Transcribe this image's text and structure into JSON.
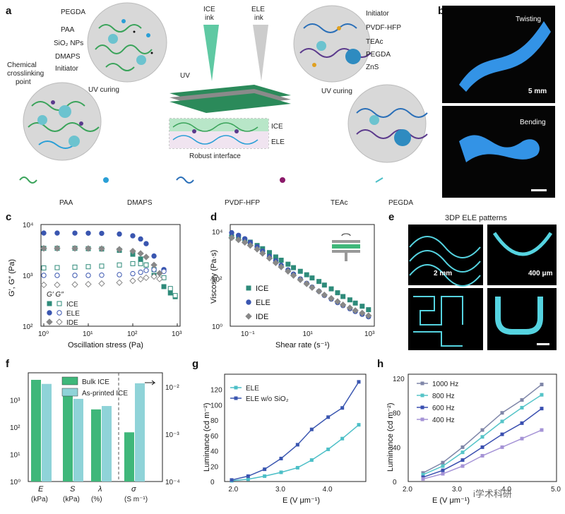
{
  "panels": {
    "a": "a",
    "b": "b",
    "c": "c",
    "d": "d",
    "e": "e",
    "f": "f",
    "g": "g",
    "h": "h"
  },
  "panel_a": {
    "ice_ink": [
      "ICE",
      "ink"
    ],
    "ele_ink": [
      "ELE",
      "ink"
    ],
    "left_components": [
      "PEGDA",
      "PAA",
      "SiO₂ NPs",
      "DMAPS",
      "Initiator"
    ],
    "right_components": [
      "Initiator",
      "PVDF-HFP",
      "TEAc",
      "PEGDA",
      "ZnS"
    ],
    "crosslink": [
      "Chemical",
      "crosslinking",
      "point"
    ],
    "uv": "UV",
    "uv_curing_left": "UV curing",
    "uv_curing_right": "UV curing",
    "layer_ice": "ICE",
    "layer_ele": "ELE",
    "robust": "Robust interface",
    "legend": [
      "PAA",
      "DMAPS",
      "PVDF-HFP",
      "TEAc",
      "PEGDA"
    ]
  },
  "panel_b": {
    "twisting": "Twisting",
    "bending": "Bending",
    "scale": "5 mm"
  },
  "panel_e": {
    "title": "3DP ELE patterns",
    "scale1": "2 mm",
    "scale2": "400 μm"
  },
  "watermark": "i学术科研",
  "chart_data": [
    {
      "id": "c",
      "type": "scatter",
      "xscale": "log",
      "yscale": "log",
      "xlabel": "Oscillation stress (Pa)",
      "ylabel": "G′, G″ (Pa)",
      "xlim": [
        1,
        1000
      ],
      "ylim": [
        100,
        10000
      ],
      "xticks": [
        "10⁰",
        "10¹",
        "10²",
        "10³"
      ],
      "yticks": [
        "10²",
        "10³",
        "10⁴"
      ],
      "legend_header": "G′ G″",
      "series": [
        {
          "name": "ICE",
          "x": [
            1,
            2,
            5,
            10,
            20,
            50,
            100,
            150,
            200,
            300,
            500,
            700,
            900
          ],
          "g1": [
            3400,
            3400,
            3400,
            3350,
            3300,
            3100,
            2600,
            2100,
            1600,
            1000,
            600,
            450,
            380
          ],
          "g2": [
            1400,
            1420,
            1450,
            1480,
            1520,
            1600,
            1700,
            1700,
            1600,
            1300,
            900,
            550,
            400
          ]
        },
        {
          "name": "ELE",
          "x": [
            1,
            2,
            5,
            10,
            20,
            50,
            100,
            150,
            200,
            300,
            500
          ],
          "g1": [
            6800,
            6800,
            6780,
            6750,
            6700,
            6500,
            6000,
            5200,
            4200,
            2400,
            1300
          ],
          "g2": [
            1000,
            1000,
            1000,
            1000,
            1010,
            1030,
            1080,
            1150,
            1250,
            1300,
            1200
          ]
        },
        {
          "name": "IDE",
          "x": [
            1,
            2,
            5,
            10,
            20,
            50,
            100,
            150,
            200,
            300,
            400
          ],
          "g1": [
            3400,
            3400,
            3400,
            3380,
            3350,
            3250,
            3000,
            2700,
            2300,
            1600,
            1100
          ],
          "g2": [
            650,
            650,
            660,
            670,
            690,
            720,
            780,
            840,
            900,
            950,
            850
          ]
        }
      ]
    },
    {
      "id": "d",
      "type": "scatter",
      "xscale": "log",
      "yscale": "log",
      "xlabel": "Shear rate (s⁻¹)",
      "ylabel": "Viscosity (Pa·s)",
      "xlim": [
        0.03,
        1000
      ],
      "ylim": [
        1,
        20000
      ],
      "xticks": [
        "10⁻¹",
        "10¹",
        "10³"
      ],
      "yticks": [
        "10⁰",
        "10²",
        "10⁴"
      ],
      "series": [
        {
          "name": "ICE",
          "color": "#2e8b7a",
          "marker": "square",
          "x": [
            0.03,
            0.05,
            0.08,
            0.12,
            0.2,
            0.3,
            0.5,
            0.8,
            1.2,
            2,
            3,
            5,
            8,
            12,
            20,
            30,
            50,
            80,
            120,
            200,
            300,
            500,
            800
          ],
          "y": [
            6000,
            5200,
            4400,
            3600,
            2600,
            1900,
            1300,
            850,
            620,
            420,
            300,
            210,
            150,
            110,
            78,
            55,
            38,
            26,
            18,
            13,
            9.5,
            7,
            5
          ]
        },
        {
          "name": "ELE",
          "color": "#3a56b0",
          "marker": "circle",
          "x": [
            0.03,
            0.05,
            0.08,
            0.12,
            0.2,
            0.3,
            0.5,
            0.8,
            1.2,
            2,
            3,
            5,
            8,
            12,
            20,
            30,
            50,
            80,
            120,
            200,
            300,
            500,
            800
          ],
          "y": [
            9000,
            7000,
            5000,
            3500,
            2300,
            1500,
            900,
            580,
            380,
            240,
            160,
            100,
            65,
            45,
            30,
            20,
            14,
            10,
            7.5,
            5.5,
            4.2,
            3.2,
            2.5
          ]
        },
        {
          "name": "IDE",
          "color": "#888",
          "marker": "diamond",
          "x": [
            0.03,
            0.05,
            0.08,
            0.12,
            0.2,
            0.3,
            0.5,
            0.8,
            1.2,
            2,
            3,
            5,
            8,
            12,
            20,
            30,
            50,
            80,
            120,
            200,
            300,
            500,
            800
          ],
          "y": [
            5500,
            4500,
            3500,
            2600,
            1800,
            1200,
            750,
            480,
            320,
            210,
            140,
            92,
            62,
            43,
            30,
            21,
            15,
            11,
            8,
            6,
            4.6,
            3.6,
            2.8
          ]
        }
      ]
    },
    {
      "id": "f",
      "type": "bar",
      "yscale": "log",
      "categories": [
        "E",
        "S",
        "λ",
        "σ"
      ],
      "units": [
        "(kPa)",
        "(kPa)",
        "(%)",
        "(S m⁻¹)"
      ],
      "series": [
        {
          "name": "Bulk ICE",
          "color": "#3fb77a",
          "values": [
            5500,
            1700,
            450,
            0.0011
          ]
        },
        {
          "name": "As-printed ICE",
          "color": "#8fd3d8",
          "values": [
            3900,
            1100,
            600,
            0.012
          ]
        }
      ],
      "ylim_left": [
        1,
        10000
      ],
      "ylim_right": [
        0.0001,
        0.02
      ],
      "yticks_left": [
        "10⁰",
        "10¹",
        "10²",
        "10³"
      ],
      "yticks_right": [
        "10⁻⁴",
        "10⁻³",
        "10⁻²"
      ]
    },
    {
      "id": "g",
      "type": "line",
      "xlabel": "E (V μm⁻¹)",
      "ylabel": "Luminance (cd m⁻²)",
      "xlim": [
        1.8,
        4.8
      ],
      "ylim": [
        0,
        140
      ],
      "xticks": [
        "2.0",
        "3.0",
        "4.0"
      ],
      "yticks": [
        "0",
        "20",
        "40",
        "60",
        "80",
        "100",
        "120"
      ],
      "series": [
        {
          "name": "ELE",
          "color": "#4cbfc7",
          "x": [
            1.95,
            2.3,
            2.65,
            3.0,
            3.35,
            3.65,
            4.0,
            4.3,
            4.65
          ],
          "y": [
            1,
            3,
            7,
            12,
            18,
            28,
            42,
            56,
            74
          ]
        },
        {
          "name": "ELE w/o SiO₂",
          "color": "#3a56b0",
          "x": [
            1.95,
            2.3,
            2.65,
            3.0,
            3.35,
            3.65,
            4.0,
            4.3,
            4.65
          ],
          "y": [
            2,
            7,
            16,
            30,
            48,
            68,
            84,
            96,
            130
          ]
        }
      ]
    },
    {
      "id": "h",
      "type": "line",
      "xlabel": "E (V μm⁻¹)",
      "ylabel": "Luminance (cd m⁻²)",
      "xlim": [
        2.0,
        5.0
      ],
      "ylim": [
        0,
        125
      ],
      "xticks": [
        "2.0",
        "3.0",
        "4.0",
        "5.0"
      ],
      "yticks": [
        "0",
        "40",
        "80",
        "120"
      ],
      "series": [
        {
          "name": "1000 Hz",
          "color": "#7f86a8",
          "x": [
            2.3,
            2.7,
            3.1,
            3.5,
            3.9,
            4.3,
            4.7
          ],
          "y": [
            10,
            22,
            40,
            60,
            80,
            95,
            113
          ]
        },
        {
          "name": "800 Hz",
          "color": "#55c4c8",
          "x": [
            2.3,
            2.7,
            3.1,
            3.5,
            3.9,
            4.3,
            4.7
          ],
          "y": [
            8,
            18,
            34,
            52,
            70,
            86,
            101
          ]
        },
        {
          "name": "600 Hz",
          "color": "#3a4fb0",
          "x": [
            2.3,
            2.7,
            3.1,
            3.5,
            3.9,
            4.3,
            4.7
          ],
          "y": [
            5,
            13,
            25,
            40,
            55,
            68,
            85
          ]
        },
        {
          "name": "400 Hz",
          "color": "#a593d6",
          "x": [
            2.3,
            2.7,
            3.1,
            3.5,
            3.9,
            4.3,
            4.7
          ],
          "y": [
            3,
            9,
            18,
            30,
            40,
            50,
            60
          ]
        }
      ]
    }
  ]
}
